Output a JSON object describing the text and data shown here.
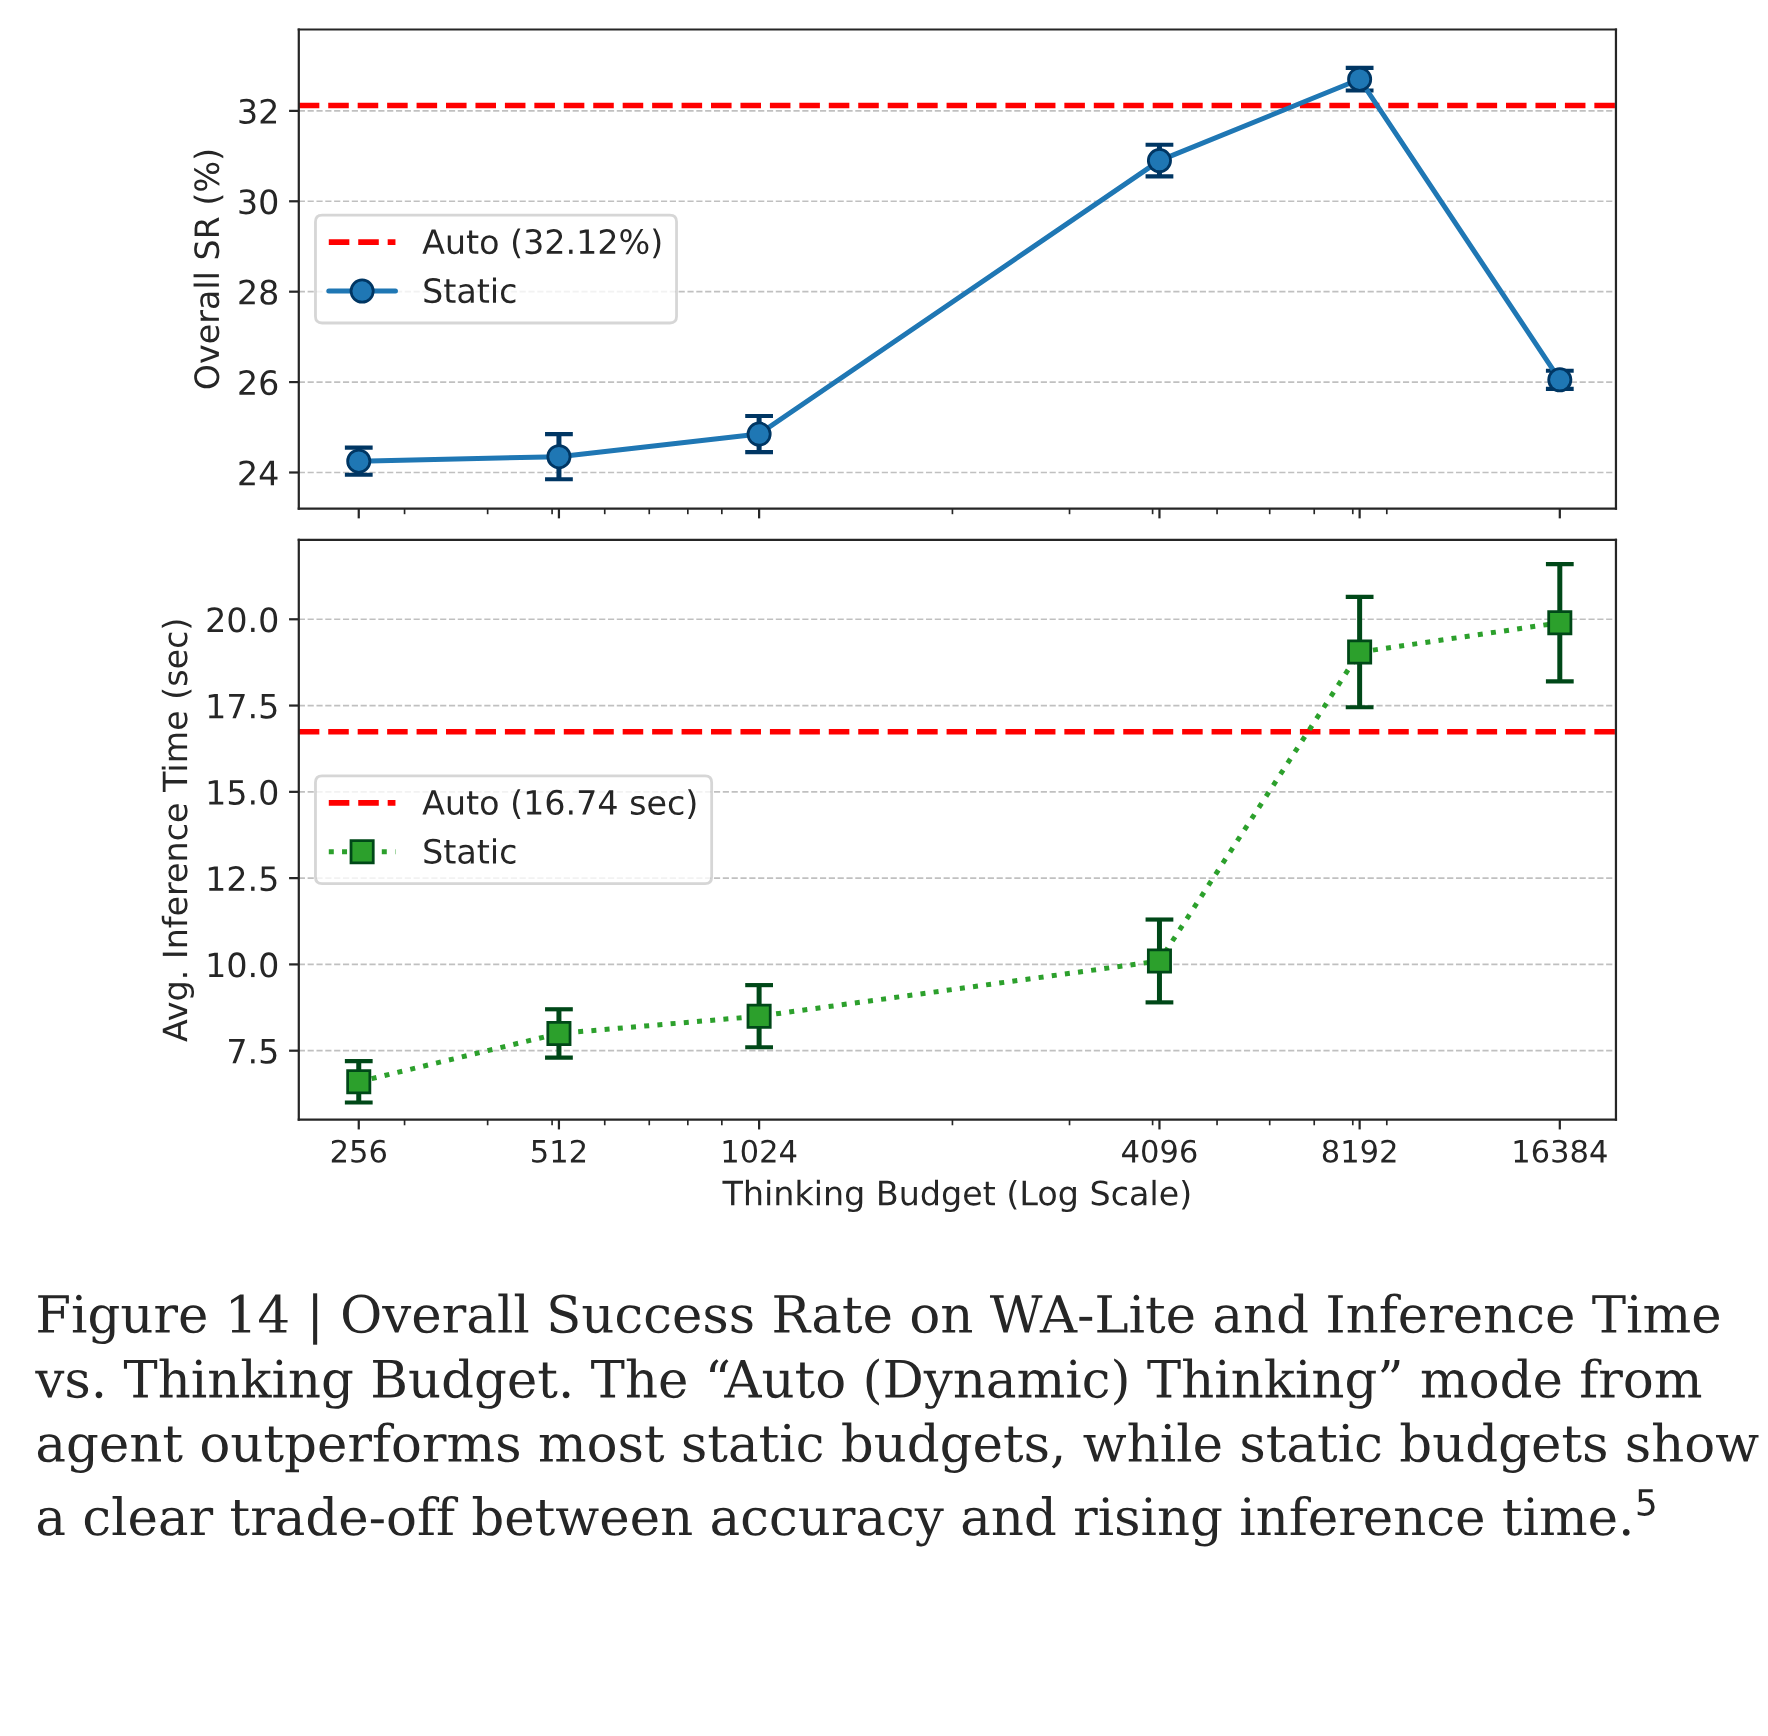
{
  "chart_data": [
    {
      "type": "line",
      "ylabel": "Overall SR (%)",
      "log": "x",
      "xlim": [
        208,
        19900
      ],
      "xticks": [
        256,
        512,
        1024,
        4096,
        8192,
        16384
      ],
      "ylim": [
        23.2,
        33.8
      ],
      "yticks": [
        24,
        26,
        28,
        30,
        32
      ],
      "tick_labels": "y",
      "grid": "y",
      "legend": "center left",
      "marker": "circle",
      "line_style": "solid",
      "x": [
        256,
        512,
        1024,
        4096,
        8192,
        16384
      ],
      "series": [
        {
          "name": "Static",
          "color": "#1f77b4",
          "values": [
            24.25,
            24.35,
            24.85,
            30.9,
            32.7,
            26.05
          ],
          "errors": [
            0.3,
            0.5,
            0.4,
            0.35,
            0.25,
            0.2
          ]
        }
      ],
      "ref_lines": [
        {
          "axis": "y",
          "value": 32.12,
          "label": "Auto (32.12%)",
          "color": "#ff0000",
          "line_style": "dashed"
        }
      ]
    },
    {
      "type": "line",
      "xlabel": "Thinking Budget (Log Scale)",
      "ylabel": "Avg. Inference Time (sec)",
      "log": "x",
      "xlim": [
        208,
        19900
      ],
      "xticks": [
        256,
        512,
        1024,
        4096,
        8192,
        16384
      ],
      "ylim": [
        5.5,
        22.3
      ],
      "yticks": [
        7.5,
        {
          "value": 10,
          "label": "10.0"
        },
        12.5,
        {
          "value": 15,
          "label": "15.0"
        },
        17.5,
        {
          "value": 20,
          "label": "20.0"
        }
      ],
      "grid": "y",
      "legend": "center left",
      "marker": "square",
      "line_style": "dotted",
      "x": [
        256,
        512,
        1024,
        4096,
        8192,
        16384
      ],
      "series": [
        {
          "name": "Static",
          "color": "#2ca02c",
          "values": [
            6.6,
            8.0,
            8.5,
            10.1,
            19.05,
            19.9
          ],
          "errors": [
            0.6,
            0.7,
            0.9,
            1.2,
            1.6,
            1.7
          ]
        }
      ],
      "ref_lines": [
        {
          "axis": "y",
          "value": 16.74,
          "label": "Auto (16.74 sec)",
          "color": "#ff0000",
          "line_style": "dashed"
        }
      ],
      "annotations": [
        "Figure 14 | Overall Success Rate on WA-Lite and Inference Time vs. Thinking Budget. The “Auto (Dynamic) Thinking” mode from agent outperforms most static budgets, while static budgets show a clear trade-off between accuracy and rising inference time.$^{5}$"
      ]
    }
  ]
}
